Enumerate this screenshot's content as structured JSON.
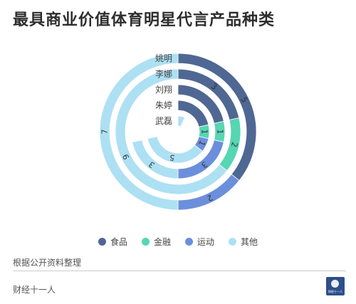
{
  "page": {
    "title": "最具商业价值体育明星代言产品种类"
  },
  "colors": {
    "食品": "#4f6793",
    "金融": "#56d6b3",
    "运动": "#6c8fdb",
    "其他": "#ade0f3"
  },
  "chart_data": {
    "type": "polar-stacked-bar",
    "title": "最具商业价值体育明星代言产品种类",
    "categories": [
      "姚明",
      "李娜",
      "刘翔",
      "朱婷",
      "武磊"
    ],
    "series": [
      {
        "name": "食品",
        "values": [
          5,
          3,
          3,
          3,
          0
        ]
      },
      {
        "name": "金融",
        "values": [
          0,
          2,
          1,
          1,
          0
        ]
      },
      {
        "name": "运动",
        "values": [
          2,
          0,
          3,
          1,
          0
        ]
      },
      {
        "name": "其他",
        "values": [
          7,
          9,
          3,
          5,
          1
        ]
      }
    ],
    "value_labels": [
      [
        "5",
        "",
        "2",
        "7"
      ],
      [
        "3",
        "2",
        "",
        "9"
      ],
      [
        "",
        "1",
        "3",
        "3"
      ],
      [
        "",
        "1",
        "1",
        "5"
      ],
      [
        "",
        "",
        "",
        ""
      ]
    ],
    "max": 14,
    "legend": "bottom"
  },
  "legend": {
    "items": [
      "食品",
      "金融",
      "运动",
      "其他"
    ]
  },
  "footer": {
    "source": "根据公开资料整理",
    "brand": "财经十一人",
    "logo_text": "财经十一人"
  }
}
